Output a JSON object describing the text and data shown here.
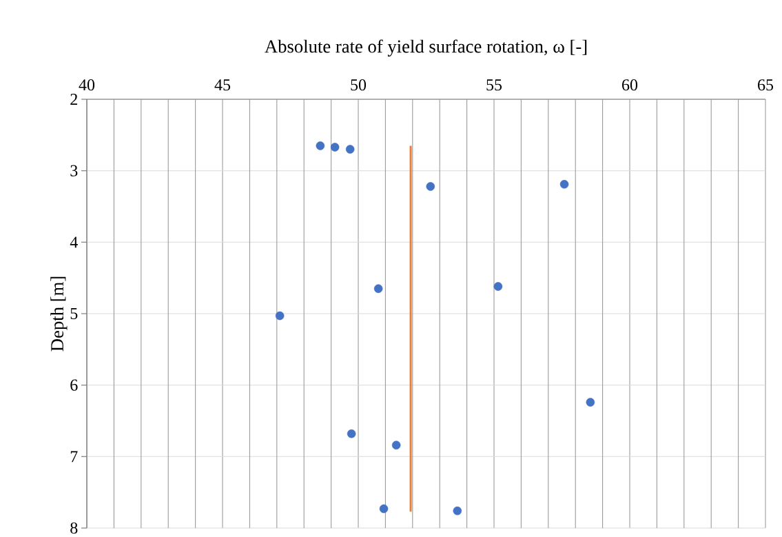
{
  "chart_data": {
    "type": "scatter",
    "xlabel": "Absolute rate of yield surface rotation, ω [-]",
    "ylabel": "Depth [m]",
    "xlim": [
      40,
      65
    ],
    "ylim": [
      8,
      2
    ],
    "xticks": [
      40,
      {
        "value": 41,
        "label": null
      },
      {
        "value": 42,
        "label": null
      },
      {
        "value": 43,
        "label": null
      },
      {
        "value": 44,
        "label": null
      },
      45,
      {
        "value": 46,
        "label": null
      },
      {
        "value": 47,
        "label": null
      },
      {
        "value": 48,
        "label": null
      },
      {
        "value": 49,
        "label": null
      },
      50,
      {
        "value": 51,
        "label": null
      },
      {
        "value": 52,
        "label": null
      },
      {
        "value": 53,
        "label": null
      },
      {
        "value": 54,
        "label": null
      },
      55,
      {
        "value": 56,
        "label": null
      },
      {
        "value": 57,
        "label": null
      },
      {
        "value": 58,
        "label": null
      },
      {
        "value": 59,
        "label": null
      },
      60,
      {
        "value": 61,
        "label": null
      },
      {
        "value": 62,
        "label": null
      },
      {
        "value": 63,
        "label": null
      },
      {
        "value": 64,
        "label": null
      },
      65
    ],
    "yticks": [
      2,
      3,
      4,
      5,
      6,
      7,
      8
    ],
    "grid": true,
    "marker": "circle",
    "series": [
      {
        "type": "scatter",
        "color": "#4472c4",
        "x": [
          48.6,
          49.14,
          49.7,
          52.66,
          57.59,
          50.74,
          55.15,
          47.11,
          58.55,
          49.75,
          51.4,
          50.94,
          53.65
        ],
        "values": [
          2.65,
          2.67,
          2.7,
          3.22,
          3.19,
          4.65,
          4.62,
          5.03,
          6.24,
          6.68,
          6.84,
          7.73,
          7.76
        ]
      },
      {
        "type": "line",
        "color": "#ed7d31",
        "marker": "none",
        "x": [
          51.93,
          51.93
        ],
        "values": [
          2.65,
          7.77
        ]
      }
    ]
  }
}
